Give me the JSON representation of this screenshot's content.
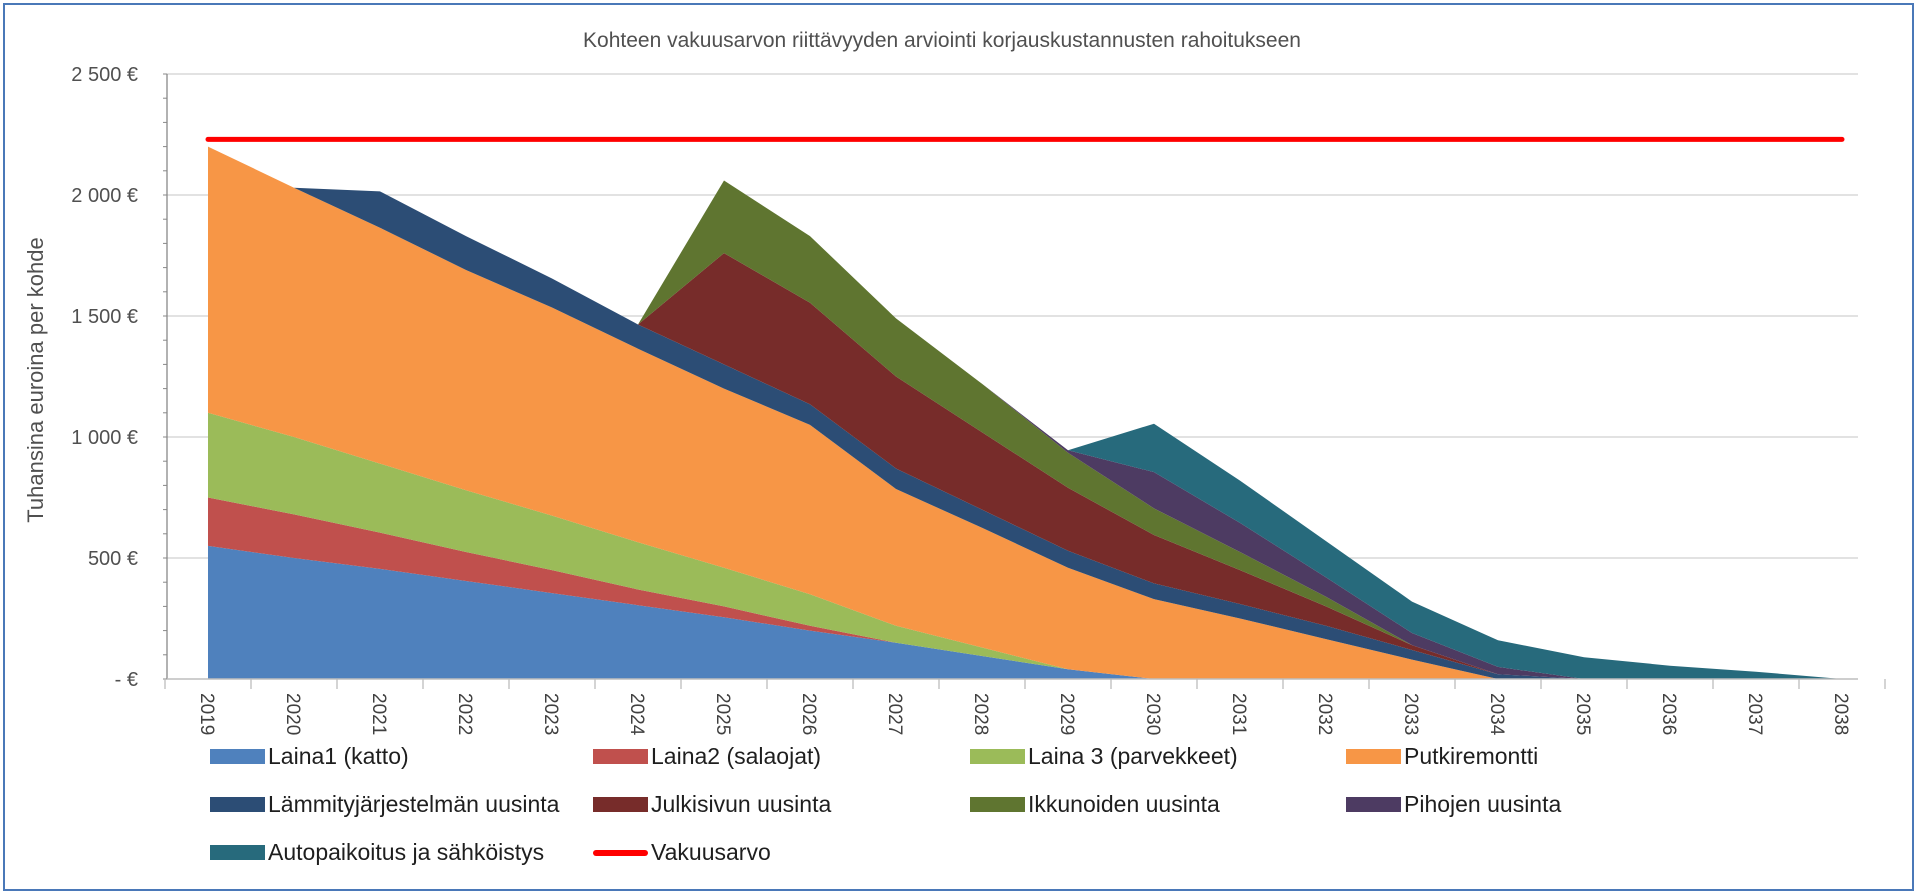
{
  "chart_data": {
    "type": "area",
    "stacked": true,
    "title": "Kohteen vakuusarvon riittävyyden arviointi korjauskustannusten rahoitukseen",
    "ylabel": "Tuhansina euroina per kohde",
    "xlabel": "",
    "ylim": [
      0,
      2500
    ],
    "y_ticks": [
      0,
      500,
      1000,
      1500,
      2000,
      2500
    ],
    "y_tick_labels": [
      "-  €",
      "500 €",
      "1 000 €",
      "1 500 €",
      "2 000 €",
      "2 500 €"
    ],
    "grid": true,
    "legend_position": "bottom",
    "categories": [
      "2019",
      "2020",
      "2021",
      "2022",
      "2023",
      "2024",
      "2025",
      "2026",
      "2027",
      "2028",
      "2029",
      "2030",
      "2031",
      "2032",
      "2033",
      "2034",
      "2035",
      "2036",
      "2037",
      "2038"
    ],
    "series": [
      {
        "name": "Laina1 (katto)",
        "color": "#4f81bd",
        "values": [
          550,
          500,
          455,
          405,
          355,
          305,
          255,
          200,
          150,
          95,
          40,
          0,
          0,
          0,
          0,
          0,
          0,
          0,
          0,
          0
        ]
      },
      {
        "name": "Laina2 (salaojat)",
        "color": "#c0504d",
        "values": [
          200,
          180,
          150,
          120,
          95,
          65,
          45,
          20,
          0,
          0,
          0,
          0,
          0,
          0,
          0,
          0,
          0,
          0,
          0,
          0
        ]
      },
      {
        "name": "Laina 3 (parvekkeet)",
        "color": "#9bbb59",
        "values": [
          350,
          320,
          285,
          255,
          225,
          195,
          160,
          130,
          70,
          35,
          0,
          0,
          0,
          0,
          0,
          0,
          0,
          0,
          0,
          0
        ]
      },
      {
        "name": "Putkiremontti",
        "color": "#f79646",
        "values": [
          1100,
          1030,
          975,
          910,
          860,
          800,
          740,
          700,
          565,
          495,
          420,
          330,
          250,
          165,
          80,
          0,
          0,
          0,
          0,
          0
        ]
      },
      {
        "name": "Lämmityjärjestelmän uusinta",
        "color": "#2c4d75",
        "values": [
          0,
          0,
          150,
          140,
          120,
          100,
          100,
          85,
          85,
          75,
          70,
          65,
          60,
          55,
          40,
          20,
          0,
          0,
          0,
          0
        ]
      },
      {
        "name": "Julkisivun uusinta",
        "color": "#772c2a",
        "values": [
          0,
          0,
          0,
          0,
          0,
          0,
          460,
          420,
          380,
          320,
          260,
          200,
          140,
          80,
          20,
          0,
          0,
          0,
          0,
          0
        ]
      },
      {
        "name": "Ikkunoiden uusinta",
        "color": "#5f7530",
        "values": [
          0,
          0,
          0,
          0,
          0,
          0,
          300,
          275,
          240,
          200,
          145,
          110,
          75,
          40,
          0,
          0,
          0,
          0,
          0,
          0
        ]
      },
      {
        "name": "Pihojen uusinta",
        "color": "#4d3b62",
        "values": [
          0,
          0,
          0,
          0,
          0,
          0,
          0,
          0,
          0,
          0,
          10,
          150,
          120,
          80,
          50,
          30,
          0,
          0,
          0,
          0
        ]
      },
      {
        "name": "Autopaikoitus ja sähköistys",
        "color": "#276a7c",
        "values": [
          0,
          0,
          0,
          0,
          0,
          0,
          0,
          0,
          0,
          0,
          0,
          200,
          175,
          150,
          130,
          110,
          90,
          55,
          30,
          0
        ]
      }
    ],
    "reference_line": {
      "name": "Vakuusarvo",
      "color": "#ff0000",
      "value": 2230
    }
  }
}
